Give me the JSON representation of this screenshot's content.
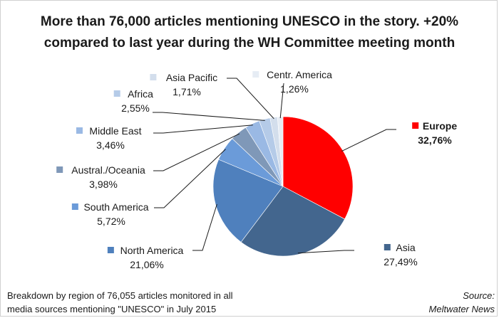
{
  "chart_data": {
    "type": "pie",
    "title_line1": "More than 76,000 articles mentioning UNESCO in the story. +20%",
    "title_line2": "compared to last year during the WH Committee meeting month",
    "slices": [
      {
        "name": "Europe",
        "value": 32.76,
        "label": "32,76%",
        "color": "#ff0000",
        "bold": true
      },
      {
        "name": "Asia",
        "value": 27.49,
        "label": "27,49%",
        "color": "#43668e",
        "bold": false
      },
      {
        "name": "North America",
        "value": 21.06,
        "label": "21,06%",
        "color": "#4f80bd",
        "bold": false
      },
      {
        "name": "South America",
        "value": 5.72,
        "label": "5,72%",
        "color": "#6b9bd9",
        "bold": false
      },
      {
        "name": "Austral./Oceania",
        "value": 3.98,
        "label": "3,98%",
        "color": "#7f98b8",
        "bold": false
      },
      {
        "name": "Middle East",
        "value": 3.46,
        "label": "3,46%",
        "color": "#9ab9e4",
        "bold": false
      },
      {
        "name": "Africa",
        "value": 2.55,
        "label": "2,55%",
        "color": "#b5cbe8",
        "bold": false
      },
      {
        "name": "Asia Pacific",
        "value": 1.71,
        "label": "1,71%",
        "color": "#d3deec",
        "bold": false
      },
      {
        "name": "Centr. America",
        "value": 1.26,
        "label": "1,26%",
        "color": "#e6ecf4",
        "bold": false
      }
    ]
  },
  "footnote": {
    "line1": "Breakdown by region of  76,055 articles monitored in all",
    "line2": "media sources mentioning \"UNESCO\" in  July 2015"
  },
  "source": {
    "line1": "Source:",
    "line2": "Meltwater News"
  }
}
